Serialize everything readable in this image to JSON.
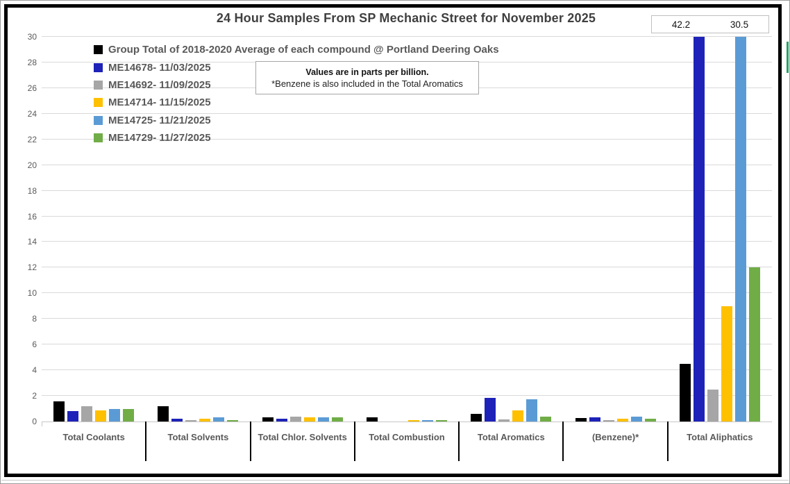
{
  "title": "24 Hour Samples From SP Mechanic Street for November 2025",
  "note": {
    "line1": "Values are in parts per billion.",
    "line2": "*Benzene is also included in the Total Aromatics"
  },
  "overflow_labels": {
    "first": "42.2",
    "second": "30.5"
  },
  "chart_data": {
    "type": "bar",
    "title": "24 Hour Samples From SP Mechanic Street for November 2025",
    "values_unit": "parts per billion",
    "categories": [
      "Total Coolants",
      "Total Solvents",
      "Total Chlor. Solvents",
      "Total Combustion",
      "Total Aromatics",
      "(Benzene)*",
      "Total Aliphatics"
    ],
    "series": [
      {
        "name": "Group Total of 2018-2020 Average of each compound @ Portland Deering Oaks",
        "color": "#000000",
        "values": [
          1.55,
          1.2,
          0.35,
          0.3,
          0.6,
          0.25,
          4.5
        ]
      },
      {
        "name": "ME14678- 11/03/2025",
        "color": "#1e22b8",
        "values": [
          0.8,
          0.2,
          0.2,
          0,
          1.85,
          0.35,
          42.2
        ]
      },
      {
        "name": "ME14692- 11/09/2025",
        "color": "#a6a6a6",
        "values": [
          1.2,
          0.1,
          0.4,
          0,
          0.15,
          0.1,
          2.5
        ]
      },
      {
        "name": "ME14714- 11/15/2025",
        "color": "#ffc000",
        "values": [
          0.85,
          0.2,
          0.35,
          0.1,
          0.85,
          0.2,
          9.0
        ]
      },
      {
        "name": "ME14725- 11/21/2025",
        "color": "#5b9bd5",
        "values": [
          0.95,
          0.35,
          0.35,
          0.1,
          1.75,
          0.4,
          30.5
        ]
      },
      {
        "name": "ME14729- 11/27/2025",
        "color": "#70ad47",
        "values": [
          0.95,
          0.1,
          0.3,
          0.1,
          0.4,
          0.2,
          12.0
        ]
      }
    ],
    "ylim": [
      0,
      30
    ],
    "y_ticks": [
      0,
      2,
      4,
      6,
      8,
      10,
      12,
      14,
      16,
      18,
      20,
      22,
      24,
      26,
      28,
      30
    ],
    "grid": true,
    "legend_position": "top-left-inside",
    "annotations": [
      {
        "text": "42.2",
        "refers_to": "ME14678- 11/03/2025 @ Total Aliphatics (bar clipped at 30)"
      },
      {
        "text": "30.5",
        "refers_to": "ME14725- 11/21/2025 @ Total Aliphatics (bar clipped at 30)"
      }
    ]
  }
}
